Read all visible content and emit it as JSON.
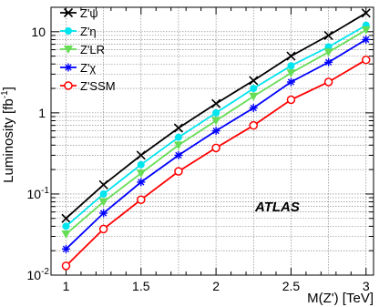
{
  "chart_data": {
    "type": "line",
    "xlabel": "M(Z') [TeV]",
    "ylabel": "Luminosity [fb",
    "ylabel_sup": "-1",
    "xlim": [
      0.9,
      3.05
    ],
    "ylim": [
      0.01,
      20
    ],
    "yscale": "log",
    "grid": true,
    "legend_position": "top-left",
    "annotation": "ATLAS",
    "x_ticks": [
      1,
      1.5,
      2,
      2.5,
      3
    ],
    "y_ticks": [
      {
        "value": 0.01,
        "base": "10",
        "exp": "-2"
      },
      {
        "value": 0.1,
        "base": "10",
        "exp": "-1"
      },
      {
        "value": 1,
        "base": "1",
        "exp": ""
      },
      {
        "value": 10,
        "base": "10",
        "exp": ""
      }
    ],
    "x": [
      1,
      1.25,
      1.5,
      1.75,
      2,
      2.25,
      2.5,
      2.75,
      3
    ],
    "series": [
      {
        "name": "Z'ψ",
        "color": "#000000",
        "marker": "x-cross",
        "values": [
          0.05,
          0.13,
          0.3,
          0.65,
          1.3,
          2.5,
          5.0,
          9.0,
          17.0
        ]
      },
      {
        "name": "Z'η",
        "color": "#00e5ee",
        "marker": "circle",
        "values": [
          0.04,
          0.1,
          0.23,
          0.5,
          1.0,
          2.0,
          3.8,
          6.5,
          12.0
        ]
      },
      {
        "name": "Z'LR",
        "color": "#66dd55",
        "marker": "triangle-down",
        "values": [
          0.032,
          0.08,
          0.18,
          0.4,
          0.8,
          1.6,
          3.1,
          5.6,
          10.5
        ]
      },
      {
        "name": "Z'χ",
        "color": "#0000ff",
        "marker": "asterisk",
        "values": [
          0.021,
          0.058,
          0.14,
          0.3,
          0.6,
          1.15,
          2.4,
          4.2,
          8.0
        ]
      },
      {
        "name": "Z'SSM",
        "color": "#ff0000",
        "marker": "open-circle",
        "values": [
          0.013,
          0.037,
          0.085,
          0.19,
          0.37,
          0.7,
          1.45,
          2.4,
          4.5
        ]
      }
    ]
  }
}
